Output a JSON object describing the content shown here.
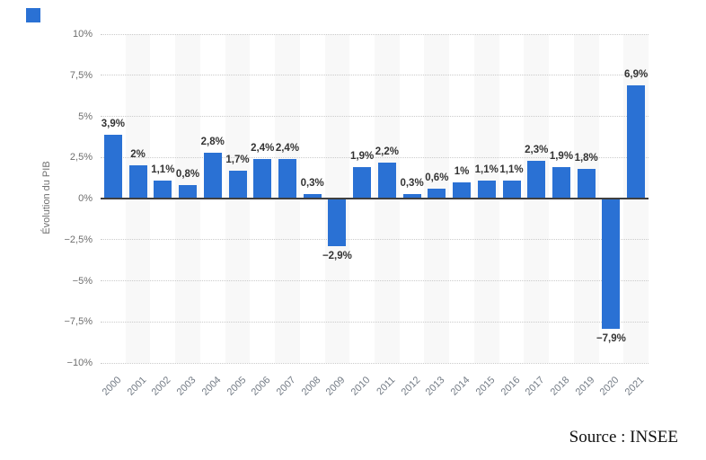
{
  "page": {
    "background": "#ffffff",
    "accent_blue": "#2a71d4"
  },
  "logo": {
    "name": "blue-square-mark",
    "color": "#2a71d4"
  },
  "chart_data": {
    "type": "bar",
    "title": "",
    "xlabel": "",
    "ylabel": "Évolution du PIB",
    "ylim": [
      -10,
      10
    ],
    "grid": "horizontal-dotted",
    "legend_position": "none",
    "bar_color": "#2a71d4",
    "stripe_color": "#f8f8f8",
    "categories": [
      "2000",
      "2001",
      "2002",
      "2003",
      "2004",
      "2005",
      "2006",
      "2007",
      "2008",
      "2009",
      "2010",
      "2011",
      "2012",
      "2013",
      "2014",
      "2015",
      "2016",
      "2017",
      "2018",
      "2019",
      "2020",
      "2021"
    ],
    "values": [
      3.9,
      2,
      1.1,
      0.8,
      2.8,
      1.7,
      2.4,
      2.4,
      0.3,
      -2.9,
      1.9,
      2.2,
      0.3,
      0.6,
      1,
      1.1,
      1.1,
      2.3,
      1.9,
      1.8,
      -7.9,
      6.9
    ],
    "bar_labels": [
      "3,9%",
      "2%",
      "1,1%",
      "0,8%",
      "2,8%",
      "1,7%",
      "2,4%",
      "2,4%",
      "0,3%",
      "−2,9%",
      "1,9%",
      "2,2%",
      "0,3%",
      "0,6%",
      "1%",
      "1,1%",
      "1,1%",
      "2,3%",
      "1,9%",
      "1,8%",
      "−7,9%",
      "6,9%"
    ],
    "y_ticks": [
      {
        "value": 10,
        "label": "10%"
      },
      {
        "value": 7.5,
        "label": "7,5%"
      },
      {
        "value": 5,
        "label": "5%"
      },
      {
        "value": 2.5,
        "label": "2,5%"
      },
      {
        "value": 0,
        "label": "0%"
      },
      {
        "value": -2.5,
        "label": "−2,5%"
      },
      {
        "value": -5,
        "label": "−5%"
      },
      {
        "value": -7.5,
        "label": "−7,5%"
      },
      {
        "value": -10,
        "label": "−10%"
      }
    ]
  },
  "source": {
    "label": "Source : INSEE"
  }
}
